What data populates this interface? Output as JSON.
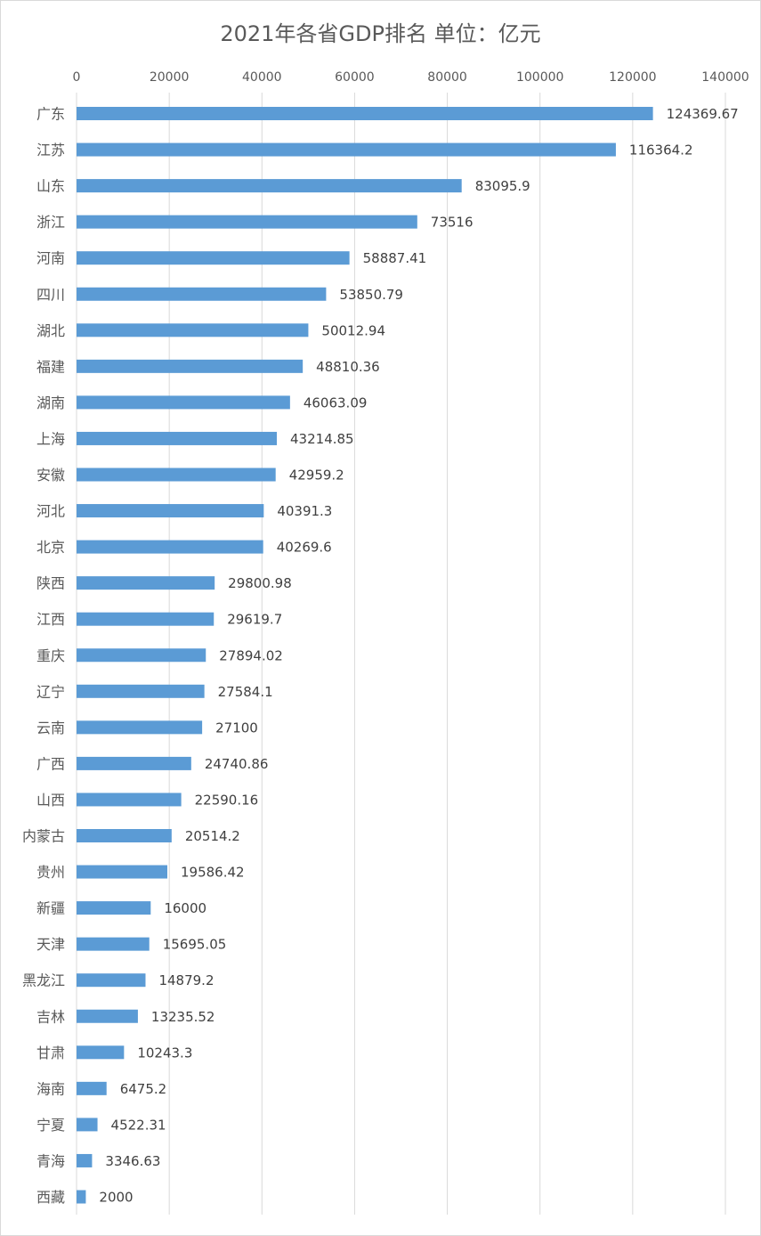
{
  "chart_data": {
    "type": "bar",
    "orientation": "horizontal",
    "title": "2021年各省GDP排名  单位：亿元",
    "xlim": [
      0,
      140000
    ],
    "ticks": [
      0,
      20000,
      40000,
      60000,
      80000,
      100000,
      120000,
      140000
    ],
    "tick_labels": [
      "0",
      "20000",
      "40000",
      "60000",
      "80000",
      "100000",
      "120000",
      "140000"
    ],
    "axis_position": "top",
    "grid": true,
    "bar_color": "#5b9bd5",
    "categories": [
      "广东",
      "江苏",
      "山东",
      "浙江",
      "河南",
      "四川",
      "湖北",
      "福建",
      "湖南",
      "上海",
      "安徽",
      "河北",
      "北京",
      "陕西",
      "江西",
      "重庆",
      "辽宁",
      "云南",
      "广西",
      "山西",
      "内蒙古",
      "贵州",
      "新疆",
      "天津",
      "黑龙江",
      "吉林",
      "甘肃",
      "海南",
      "宁夏",
      "青海",
      "西藏"
    ],
    "values": [
      124369.67,
      116364.2,
      83095.9,
      73516,
      58887.41,
      53850.79,
      50012.94,
      48810.36,
      46063.09,
      43214.85,
      42959.2,
      40391.3,
      40269.6,
      29800.98,
      29619.7,
      27894.02,
      27584.1,
      27100,
      24740.86,
      22590.16,
      20514.2,
      19586.42,
      16000,
      15695.05,
      14879.2,
      13235.52,
      10243.3,
      6475.2,
      4522.31,
      3346.63,
      2000
    ],
    "value_labels": [
      "124369.67",
      "116364.2",
      "83095.9",
      "73516",
      "58887.41",
      "53850.79",
      "50012.94",
      "48810.36",
      "46063.09",
      "43214.85",
      "42959.2",
      "40391.3",
      "40269.6",
      "29800.98",
      "29619.7",
      "27894.02",
      "27584.1",
      "27100",
      "24740.86",
      "22590.16",
      "20514.2",
      "19586.42",
      "16000",
      "15695.05",
      "14879.2",
      "13235.52",
      "10243.3",
      "6475.2",
      "4522.31",
      "3346.63",
      "2000"
    ]
  }
}
